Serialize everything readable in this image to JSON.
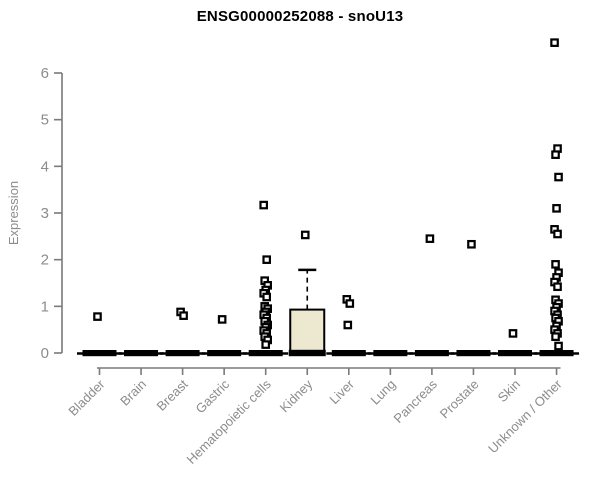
{
  "chart_data": {
    "type": "boxplot",
    "title": "ENSG00000252088 - snoU13",
    "xlabel": "",
    "ylabel": "Expression",
    "ylim": [
      0,
      6
    ],
    "yticks": [
      0,
      1,
      2,
      3,
      4,
      5,
      6
    ],
    "grid": false,
    "legend": false,
    "marker": "open-square",
    "colors": {
      "title": "#000000",
      "axis": "#7a7a7a",
      "tick_label": "#8c8c8c",
      "data": "#000000",
      "box_fill": "#ede8d0"
    },
    "categories": [
      {
        "label": "Bladder",
        "box": {
          "q1": 0,
          "median": 0,
          "q3": 0,
          "whisker_high": 0
        },
        "outliers": [
          0.78
        ]
      },
      {
        "label": "Brain",
        "box": {
          "q1": 0,
          "median": 0,
          "q3": 0,
          "whisker_high": 0
        },
        "outliers": []
      },
      {
        "label": "Breast",
        "box": {
          "q1": 0,
          "median": 0,
          "q3": 0,
          "whisker_high": 0
        },
        "outliers": [
          0.88,
          0.8
        ]
      },
      {
        "label": "Gastric",
        "box": {
          "q1": 0,
          "median": 0,
          "q3": 0,
          "whisker_high": 0
        },
        "outliers": [
          0.72
        ]
      },
      {
        "label": "Hematopoietic cells",
        "box": {
          "q1": 0,
          "median": 0,
          "q3": 0,
          "whisker_high": 0
        },
        "outliers": [
          3.17,
          2.0,
          1.55,
          1.45,
          1.35,
          1.28,
          1.2,
          1.0,
          0.95,
          0.88,
          0.82,
          0.75,
          0.68,
          0.6,
          0.55,
          0.48,
          0.42,
          0.35,
          0.28,
          0.18
        ]
      },
      {
        "label": "Kidney",
        "box": {
          "q1": 0,
          "median": 0,
          "q3": 0.93,
          "whisker_high": 1.78
        },
        "outliers": [
          2.53
        ]
      },
      {
        "label": "Liver",
        "box": {
          "q1": 0,
          "median": 0,
          "q3": 0,
          "whisker_high": 0
        },
        "outliers": [
          1.15,
          1.06,
          0.6
        ]
      },
      {
        "label": "Lung",
        "box": {
          "q1": 0,
          "median": 0,
          "q3": 0,
          "whisker_high": 0
        },
        "outliers": []
      },
      {
        "label": "Pancreas",
        "box": {
          "q1": 0,
          "median": 0,
          "q3": 0,
          "whisker_high": 0
        },
        "outliers": [
          2.45
        ]
      },
      {
        "label": "Prostate",
        "box": {
          "q1": 0,
          "median": 0,
          "q3": 0,
          "whisker_high": 0
        },
        "outliers": [
          2.33
        ]
      },
      {
        "label": "Skin",
        "box": {
          "q1": 0,
          "median": 0,
          "q3": 0,
          "whisker_high": 0
        },
        "outliers": [
          0.42
        ]
      },
      {
        "label": "Unknown / Other",
        "box": {
          "q1": 0,
          "median": 0,
          "q3": 0,
          "whisker_high": 0
        },
        "outliers": [
          6.65,
          4.38,
          4.25,
          3.77,
          3.1,
          2.65,
          2.55,
          1.9,
          1.72,
          1.62,
          1.52,
          1.42,
          1.14,
          1.06,
          0.98,
          0.9,
          0.82,
          0.75,
          0.68,
          0.58,
          0.5,
          0.42,
          0.35,
          0.15
        ]
      }
    ]
  }
}
